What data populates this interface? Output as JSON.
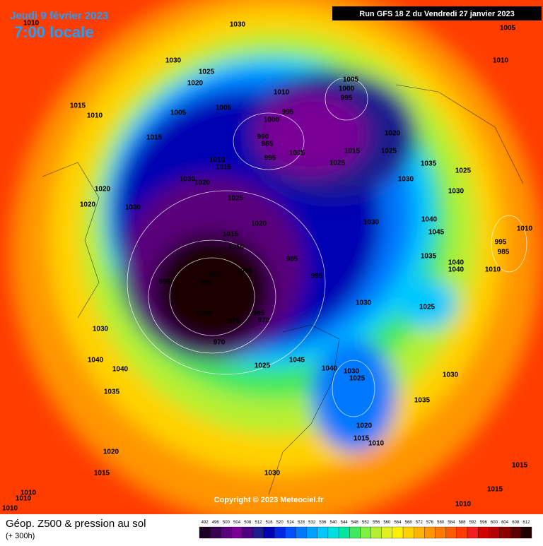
{
  "header": {
    "date": "Jeudi 9 février 2023",
    "time": "7:00 locale",
    "run": "Run GFS 18 Z du Vendredi 27 janvier 2023"
  },
  "copyright": "Copyright © 2023 Meteociel.fr",
  "footer": {
    "title": "Géop. Z500 & pression au sol",
    "lead": "(+ 300h)"
  },
  "isobar_labels": [
    1010,
    1030,
    1005,
    1010,
    1030,
    1025,
    1020,
    1005,
    1000,
    995,
    1010,
    1015,
    1010,
    1005,
    1005,
    995,
    1000,
    990,
    985,
    1020,
    1015,
    1005,
    995,
    1015,
    1025,
    1010,
    1015,
    1025,
    1035,
    1025,
    1030,
    1020,
    1020,
    1030,
    1030,
    1025,
    1020,
    1030,
    1020,
    1030,
    1040,
    1045,
    1015,
    1010,
    1010,
    995,
    985,
    1005,
    985,
    985,
    1035,
    1040,
    1040,
    1010,
    995,
    990,
    995,
    1030,
    1025,
    1000,
    965,
    970,
    975,
    970,
    1030,
    1040,
    1040,
    1045,
    1025,
    1040,
    1030,
    1025,
    1030,
    1035,
    1035,
    1020,
    1015,
    1010,
    1020,
    1015,
    1030,
    1015,
    1015,
    1010,
    1010,
    1010,
    1010
  ],
  "scale": {
    "values": [
      492,
      496,
      500,
      504,
      508,
      512,
      516,
      520,
      524,
      528,
      532,
      536,
      540,
      544,
      548,
      552,
      556,
      560,
      564,
      568,
      572,
      576,
      580,
      584,
      588,
      592,
      596,
      600,
      604,
      608,
      612
    ],
    "colors": [
      "#1a0024",
      "#3a0050",
      "#5a007a",
      "#780096",
      "#4b0082",
      "#1c1c8c",
      "#0000b4",
      "#0028e0",
      "#0050ff",
      "#0078ff",
      "#00a0ff",
      "#00c8ff",
      "#00e0e0",
      "#00e6a0",
      "#40e860",
      "#80f040",
      "#b4f030",
      "#e0f020",
      "#fff000",
      "#ffd200",
      "#ffb400",
      "#ff9600",
      "#ff7800",
      "#ff5a00",
      "#ff3c00",
      "#f01e1e",
      "#d20000",
      "#b40000",
      "#8c0000",
      "#5a0000",
      "#1e0000"
    ]
  }
}
